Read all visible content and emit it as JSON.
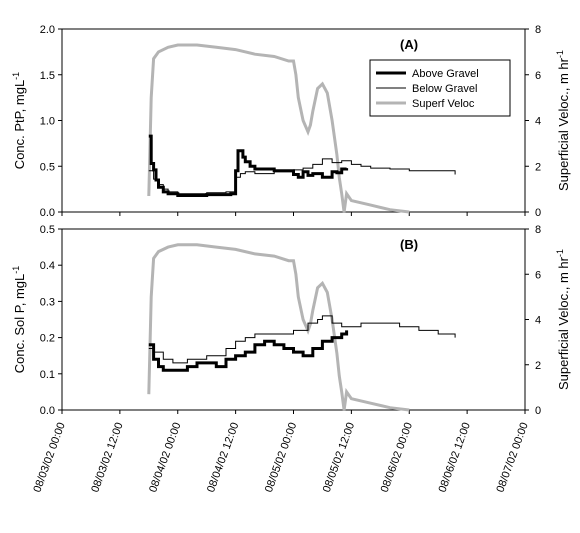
{
  "chart_data": [
    {
      "type": "line",
      "panel_label": "(A)",
      "ylabel_left": "Conc. PtP, mgL",
      "ylabel_left_sup": "-1",
      "ylabel_right": "Superficial Veloc., m hr",
      "ylabel_right_sup": "-1",
      "ylim_left": [
        0,
        2.0
      ],
      "ylim_right": [
        0,
        8
      ],
      "yticks_left": [
        "0.0",
        "0.5",
        "1.0",
        "1.5",
        "2.0"
      ],
      "yticks_right": [
        "0",
        "2",
        "4",
        "6",
        "8"
      ],
      "xlim": [
        "08/03/02 00:00",
        "08/07/02 00:00"
      ],
      "legend": {
        "placement": "top-right",
        "entries": [
          {
            "name": "Above Gravel",
            "style": "thick-black"
          },
          {
            "name": "Below Gravel",
            "style": "thin-black"
          },
          {
            "name": "Superf Veloc",
            "style": "thick-gray"
          }
        ]
      },
      "series": [
        {
          "name": "Above Gravel",
          "axis": "left",
          "step": true,
          "x": [
            "08/03/02 18:00",
            "08/03/02 18:30",
            "08/03/02 19:00",
            "08/03/02 19:30",
            "08/03/02 20:00",
            "08/03/02 21:00",
            "08/03/02 22:00",
            "08/04/02 00:00",
            "08/04/02 06:00",
            "08/04/02 11:00",
            "08/04/02 12:00",
            "08/04/02 12:30",
            "08/04/02 13:30",
            "08/04/02 14:00",
            "08/04/02 15:00",
            "08/04/02 16:00",
            "08/04/02 20:00",
            "08/05/02 00:00",
            "08/05/02 01:00",
            "08/05/02 02:00",
            "08/05/02 03:00",
            "08/05/02 04:00",
            "08/05/02 06:00",
            "08/05/02 08:00",
            "08/05/02 09:00",
            "08/05/02 10:00",
            "08/05/02 11:00"
          ],
          "y": [
            0.83,
            0.53,
            0.46,
            0.35,
            0.27,
            0.22,
            0.2,
            0.18,
            0.19,
            0.2,
            0.45,
            0.67,
            0.6,
            0.55,
            0.5,
            0.47,
            0.45,
            0.41,
            0.38,
            0.44,
            0.4,
            0.42,
            0.38,
            0.44,
            0.43,
            0.47,
            0.48
          ]
        },
        {
          "name": "Below Gravel",
          "axis": "left",
          "step": true,
          "x": [
            "08/03/02 18:00",
            "08/03/02 19:00",
            "08/03/02 20:00",
            "08/03/02 21:00",
            "08/03/02 22:00",
            "08/04/02 00:00",
            "08/04/02 06:00",
            "08/04/02 10:00",
            "08/04/02 12:00",
            "08/04/02 13:00",
            "08/04/02 14:00",
            "08/04/02 16:00",
            "08/04/02 20:00",
            "08/05/02 00:00",
            "08/05/02 02:00",
            "08/05/02 04:00",
            "08/05/02 06:00",
            "08/05/02 08:00",
            "08/05/02 10:00",
            "08/05/02 12:00",
            "08/05/02 14:00",
            "08/05/02 16:00",
            "08/05/02 20:00",
            "08/06/02 00:00",
            "08/06/02 04:00",
            "08/06/02 08:00",
            "08/06/02 09:30"
          ],
          "y": [
            0.45,
            0.36,
            0.3,
            0.25,
            0.22,
            0.2,
            0.21,
            0.22,
            0.38,
            0.42,
            0.44,
            0.42,
            0.44,
            0.46,
            0.48,
            0.52,
            0.58,
            0.54,
            0.56,
            0.52,
            0.5,
            0.48,
            0.47,
            0.45,
            0.45,
            0.45,
            0.41
          ]
        },
        {
          "name": "Superf Veloc",
          "axis": "right",
          "step": false,
          "x": [
            "08/03/02 18:00",
            "08/03/02 18:30",
            "08/03/02 19:00",
            "08/03/02 20:00",
            "08/03/02 22:00",
            "08/04/02 00:00",
            "08/04/02 04:00",
            "08/04/02 08:00",
            "08/04/02 12:00",
            "08/04/02 16:00",
            "08/04/02 20:00",
            "08/04/02 23:00",
            "08/05/02 00:00",
            "08/05/02 00:30",
            "08/05/02 01:00",
            "08/05/02 02:00",
            "08/05/02 03:00",
            "08/05/02 03:30",
            "08/05/02 04:00",
            "08/05/02 05:00",
            "08/05/02 06:00",
            "08/05/02 07:00",
            "08/05/02 08:00",
            "08/05/02 09:00",
            "08/05/02 09:30",
            "08/05/02 10:00",
            "08/05/02 10:30",
            "08/05/02 11:00",
            "08/05/02 12:00",
            "08/05/02 16:00",
            "08/05/02 20:00",
            "08/06/02 00:00"
          ],
          "y": [
            0.7,
            5.0,
            6.7,
            7.0,
            7.2,
            7.3,
            7.3,
            7.2,
            7.1,
            6.9,
            6.8,
            6.6,
            6.6,
            6.0,
            5.0,
            4.0,
            3.5,
            3.8,
            4.4,
            5.4,
            5.6,
            5.2,
            4.0,
            2.5,
            1.5,
            0.8,
            0.0,
            0.8,
            0.5,
            0.3,
            0.1,
            0.0
          ]
        }
      ]
    },
    {
      "type": "line",
      "panel_label": "(B)",
      "ylabel_left": "Conc. Sol P, mgL",
      "ylabel_left_sup": "-1",
      "ylabel_right": "Superficial Veloc., m hr",
      "ylabel_right_sup": "-1",
      "ylim_left": [
        0,
        0.5
      ],
      "ylim_right": [
        0,
        8
      ],
      "yticks_left": [
        "0.0",
        "0.1",
        "0.2",
        "0.3",
        "0.4",
        "0.5"
      ],
      "yticks_right": [
        "0",
        "2",
        "4",
        "6",
        "8"
      ],
      "xlim": [
        "08/03/02 00:00",
        "08/07/02 00:00"
      ],
      "xtick_labels": [
        "08/03/02 00:00",
        "08/03/02 12:00",
        "08/04/02 00:00",
        "08/04/02 12:00",
        "08/05/02 00:00",
        "08/05/02 12:00",
        "08/06/02 00:00",
        "08/06/02 12:00",
        "08/07/02 00:00"
      ],
      "series": [
        {
          "name": "Above Gravel",
          "axis": "left",
          "step": true,
          "x": [
            "08/03/02 18:00",
            "08/03/02 19:00",
            "08/03/02 20:00",
            "08/03/02 21:00",
            "08/03/02 23:00",
            "08/04/02 02:00",
            "08/04/02 04:00",
            "08/04/02 06:00",
            "08/04/02 08:00",
            "08/04/02 10:00",
            "08/04/02 12:00",
            "08/04/02 14:00",
            "08/04/02 16:00",
            "08/04/02 18:00",
            "08/04/02 20:00",
            "08/04/02 22:00",
            "08/05/02 00:00",
            "08/05/02 02:00",
            "08/05/02 04:00",
            "08/05/02 06:00",
            "08/05/02 08:00",
            "08/05/02 10:00",
            "08/05/02 11:00"
          ],
          "y": [
            0.18,
            0.14,
            0.12,
            0.11,
            0.11,
            0.12,
            0.13,
            0.13,
            0.12,
            0.14,
            0.15,
            0.16,
            0.18,
            0.19,
            0.18,
            0.17,
            0.16,
            0.15,
            0.17,
            0.19,
            0.2,
            0.21,
            0.22
          ]
        },
        {
          "name": "Below Gravel",
          "axis": "left",
          "step": true,
          "x": [
            "08/03/02 18:00",
            "08/03/02 19:00",
            "08/03/02 21:00",
            "08/03/02 23:00",
            "08/04/02 02:00",
            "08/04/02 06:00",
            "08/04/02 10:00",
            "08/04/02 12:00",
            "08/04/02 14:00",
            "08/04/02 16:00",
            "08/04/02 20:00",
            "08/05/02 00:00",
            "08/05/02 03:00",
            "08/05/02 05:00",
            "08/05/02 06:00",
            "08/05/02 08:00",
            "08/05/02 10:00",
            "08/05/02 14:00",
            "08/05/02 18:00",
            "08/05/02 22:00",
            "08/06/02 02:00",
            "08/06/02 06:00",
            "08/06/02 09:30"
          ],
          "y": [
            0.17,
            0.16,
            0.14,
            0.13,
            0.14,
            0.15,
            0.17,
            0.19,
            0.2,
            0.21,
            0.21,
            0.22,
            0.24,
            0.25,
            0.26,
            0.24,
            0.23,
            0.24,
            0.24,
            0.23,
            0.22,
            0.21,
            0.2
          ]
        },
        {
          "name": "Superf Veloc",
          "axis": "right",
          "step": false,
          "x": [
            "08/03/02 18:00",
            "08/03/02 18:30",
            "08/03/02 19:00",
            "08/03/02 20:00",
            "08/03/02 22:00",
            "08/04/02 00:00",
            "08/04/02 04:00",
            "08/04/02 08:00",
            "08/04/02 12:00",
            "08/04/02 16:00",
            "08/04/02 20:00",
            "08/04/02 23:00",
            "08/05/02 00:00",
            "08/05/02 00:30",
            "08/05/02 01:00",
            "08/05/02 02:00",
            "08/05/02 03:00",
            "08/05/02 03:30",
            "08/05/02 04:00",
            "08/05/02 05:00",
            "08/05/02 06:00",
            "08/05/02 07:00",
            "08/05/02 08:00",
            "08/05/02 09:00",
            "08/05/02 09:30",
            "08/05/02 10:00",
            "08/05/02 10:30",
            "08/05/02 11:00",
            "08/05/02 12:00",
            "08/05/02 16:00",
            "08/05/02 20:00",
            "08/06/02 00:00"
          ],
          "y": [
            0.7,
            5.0,
            6.7,
            7.0,
            7.2,
            7.3,
            7.3,
            7.2,
            7.1,
            6.9,
            6.8,
            6.6,
            6.6,
            6.0,
            5.0,
            4.0,
            3.5,
            3.8,
            4.4,
            5.4,
            5.6,
            5.2,
            4.0,
            2.5,
            1.5,
            0.8,
            0.0,
            0.8,
            0.5,
            0.3,
            0.1,
            0.0
          ]
        }
      ]
    }
  ]
}
